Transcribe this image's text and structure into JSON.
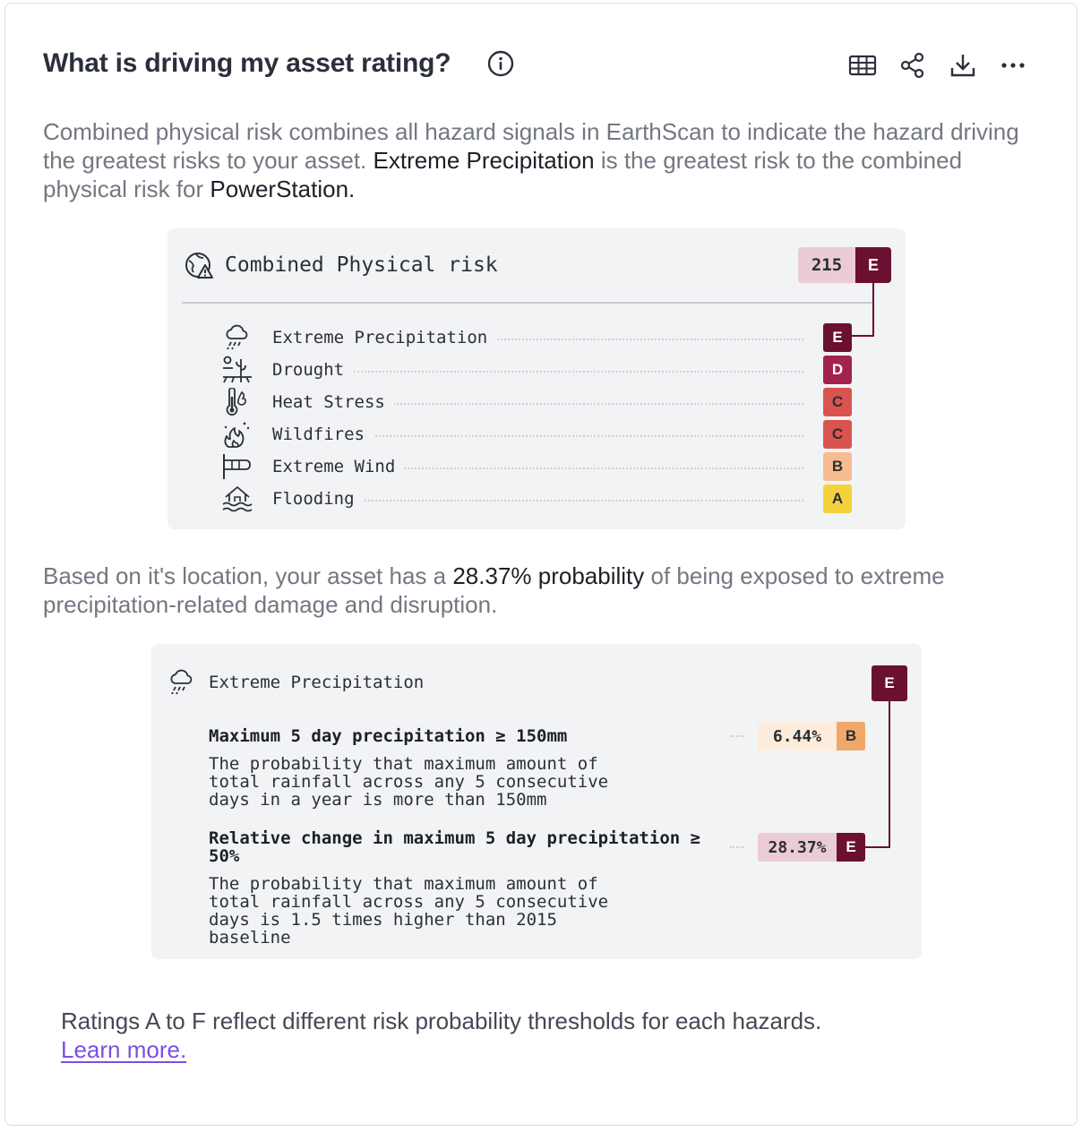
{
  "header": {
    "title": "What is driving my asset rating?",
    "tools": [
      {
        "icon": "table-icon",
        "label": "Table view"
      },
      {
        "icon": "share-icon",
        "label": "Share"
      },
      {
        "icon": "download-icon",
        "label": "Download"
      },
      {
        "icon": "more-icon",
        "label": "More options"
      }
    ]
  },
  "intro": {
    "part1": "Combined physical risk combines all hazard signals in EarthScan to indicate the hazard driving the greatest risks to your asset. ",
    "hazard": "Extreme Precipitation",
    "part2": " is the greatest risk to the combined physical risk for ",
    "asset": "PowerStation",
    "part3": "."
  },
  "combined": {
    "title": "Combined Physical risk",
    "score": "215",
    "rating": "E",
    "hazards": [
      {
        "name": "Extreme Precipitation",
        "grade": "E",
        "icon": "rain-cloud-icon",
        "bg": "#6b1030",
        "fg": "#ffffff"
      },
      {
        "name": "Drought",
        "grade": "D",
        "icon": "drought-icon",
        "bg": "#a3234d",
        "fg": "#ffffff"
      },
      {
        "name": "Heat Stress",
        "grade": "C",
        "icon": "thermometer-icon",
        "bg": "#d9544f",
        "fg": "#2b2f36"
      },
      {
        "name": "Wildfires",
        "grade": "C",
        "icon": "wildfire-icon",
        "bg": "#d9544f",
        "fg": "#2b2f36"
      },
      {
        "name": "Extreme Wind",
        "grade": "B",
        "icon": "wind-icon",
        "bg": "#f7bc8f",
        "fg": "#2b2f36"
      },
      {
        "name": "Flooding",
        "grade": "A",
        "icon": "flood-icon",
        "bg": "#f4d23b",
        "fg": "#2b2f36"
      }
    ]
  },
  "probability": {
    "part1": "Based on it's location, your asset has a ",
    "value": "28.37% probability",
    "part2": " of being exposed to extreme precipitation-related damage and disruption."
  },
  "detail": {
    "title": "Extreme Precipitation",
    "rating": "E",
    "metrics": [
      {
        "heading": "Maximum 5 day precipitation ≥ 150mm",
        "desc": "The probability that maximum amount of total rainfall across any 5 consecutive days in a year is more than 150mm",
        "value": "6.44%",
        "grade": "B",
        "value_bg": "#fdebdc",
        "grade_bg": "#f0a86a"
      },
      {
        "heading": "Relative change in maximum 5 day precipitation ≥ 50%",
        "desc": "The probability that maximum amount of total rainfall across any 5 consecutive days is 1.5 times higher than 2015 baseline",
        "value": "28.37%",
        "grade": "E",
        "value_bg": "#ebcbd4",
        "grade_bg": "#6b1030"
      }
    ]
  },
  "footer": {
    "text": "Ratings A to F reflect different risk probability thresholds for each hazards.",
    "link": "Learn more."
  },
  "colors": {
    "connector": "#6b1030",
    "link": "#7b4fe0"
  }
}
